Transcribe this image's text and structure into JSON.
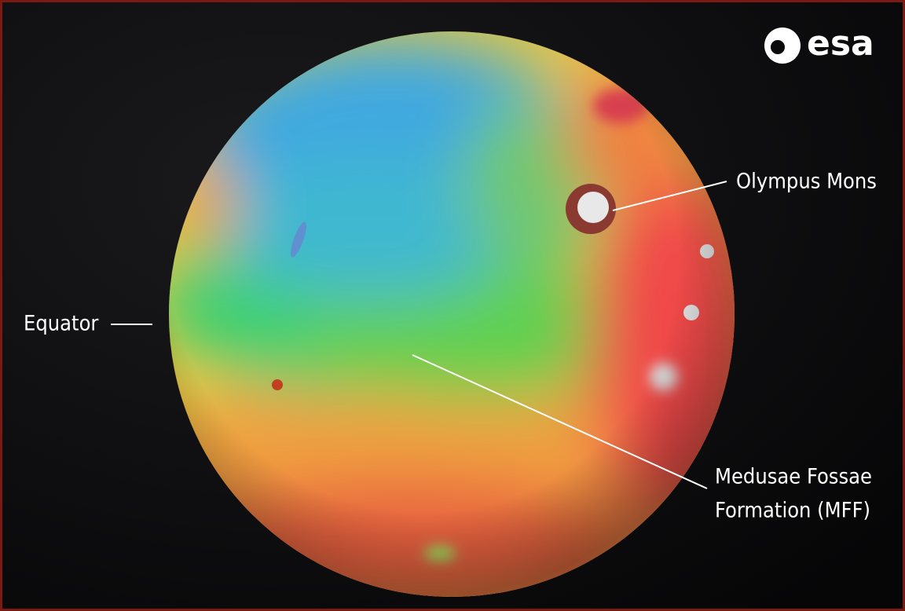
{
  "logo": "esa",
  "labels": {
    "olympus": "Olympus Mons",
    "equator": "Equator",
    "mff_line1": "Medusae Fossae",
    "mff_line2": "Formation (MFF)"
  }
}
